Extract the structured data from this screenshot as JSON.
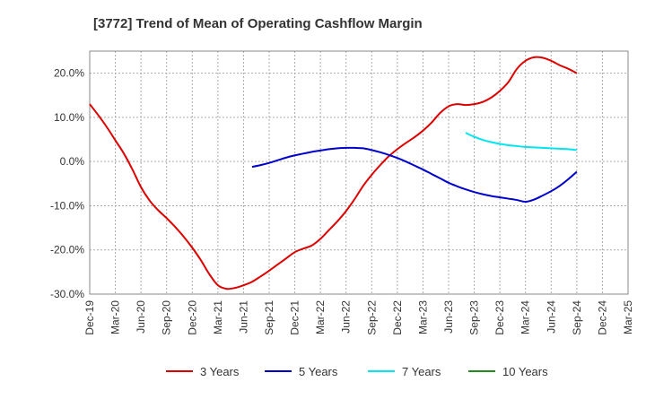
{
  "chart_data": {
    "type": "line",
    "title": "[3772]  Trend of Mean of Operating Cashflow Margin",
    "xlabel": "",
    "ylabel": "",
    "ylim": [
      -30,
      25
    ],
    "y_ticks": [
      20,
      10,
      0,
      -10,
      -20,
      -30
    ],
    "y_tick_labels": [
      "20.0%",
      "10.0%",
      "0.0%",
      "-10.0%",
      "-20.0%",
      "-30.0%"
    ],
    "x_tick_labels": [
      "Dec-19",
      "Mar-20",
      "Jun-20",
      "Sep-20",
      "Dec-20",
      "Mar-21",
      "Jun-21",
      "Sep-21",
      "Dec-21",
      "Mar-22",
      "Jun-22",
      "Sep-22",
      "Dec-22",
      "Mar-23",
      "Jun-23",
      "Sep-23",
      "Dec-23",
      "Mar-24",
      "Jun-24",
      "Sep-24",
      "Dec-24",
      "Mar-25"
    ],
    "grid": true,
    "legend_position": "bottom",
    "series": [
      {
        "name": "3 Years",
        "color": "#dd0000",
        "values": [
          [
            "Dec-19",
            13.0
          ],
          [
            "Jan-20",
            10.5
          ],
          [
            "Feb-20",
            7.8
          ],
          [
            "Mar-20",
            4.8
          ],
          [
            "Apr-20",
            1.8
          ],
          [
            "May-20",
            -1.8
          ],
          [
            "Jun-20",
            -5.8
          ],
          [
            "Jul-20",
            -8.8
          ],
          [
            "Aug-20",
            -11.0
          ],
          [
            "Sep-20",
            -12.8
          ],
          [
            "Oct-20",
            -14.8
          ],
          [
            "Nov-20",
            -17.0
          ],
          [
            "Dec-20",
            -19.5
          ],
          [
            "Jan-21",
            -22.3
          ],
          [
            "Feb-21",
            -25.5
          ],
          [
            "Mar-21",
            -28.0
          ],
          [
            "Apr-21",
            -28.8
          ],
          [
            "May-21",
            -28.6
          ],
          [
            "Jun-21",
            -28.0
          ],
          [
            "Jul-21",
            -27.2
          ],
          [
            "Aug-21",
            -26.0
          ],
          [
            "Sep-21",
            -24.7
          ],
          [
            "Oct-21",
            -23.3
          ],
          [
            "Nov-21",
            -21.9
          ],
          [
            "Dec-21",
            -20.5
          ],
          [
            "Jan-22",
            -19.7
          ],
          [
            "Feb-22",
            -19.0
          ],
          [
            "Mar-22",
            -17.5
          ],
          [
            "Apr-22",
            -15.5
          ],
          [
            "May-22",
            -13.5
          ],
          [
            "Jun-22",
            -11.2
          ],
          [
            "Jul-22",
            -8.5
          ],
          [
            "Aug-22",
            -5.5
          ],
          [
            "Sep-22",
            -3.0
          ],
          [
            "Oct-22",
            -0.8
          ],
          [
            "Nov-22",
            1.2
          ],
          [
            "Dec-22",
            2.8
          ],
          [
            "Jan-23",
            4.2
          ],
          [
            "Feb-23",
            5.5
          ],
          [
            "Mar-23",
            7.0
          ],
          [
            "Apr-23",
            8.8
          ],
          [
            "May-23",
            11.0
          ],
          [
            "Jun-23",
            12.5
          ],
          [
            "Jul-23",
            13.0
          ],
          [
            "Aug-23",
            12.8
          ],
          [
            "Sep-23",
            13.0
          ],
          [
            "Oct-23",
            13.5
          ],
          [
            "Nov-23",
            14.5
          ],
          [
            "Dec-23",
            16.0
          ],
          [
            "Jan-24",
            18.0
          ],
          [
            "Feb-24",
            21.0
          ],
          [
            "Mar-24",
            22.8
          ],
          [
            "Apr-24",
            23.6
          ],
          [
            "May-24",
            23.5
          ],
          [
            "Jun-24",
            22.8
          ],
          [
            "Jul-24",
            21.8
          ],
          [
            "Aug-24",
            21.0
          ],
          [
            "Sep-24",
            20.0
          ]
        ]
      },
      {
        "name": "5 Years",
        "color": "#0000cc",
        "values": [
          [
            "Jul-21",
            -1.2
          ],
          [
            "Aug-21",
            -0.8
          ],
          [
            "Sep-21",
            -0.3
          ],
          [
            "Oct-21",
            0.3
          ],
          [
            "Nov-21",
            0.9
          ],
          [
            "Dec-21",
            1.4
          ],
          [
            "Jan-22",
            1.8
          ],
          [
            "Feb-22",
            2.2
          ],
          [
            "Mar-22",
            2.5
          ],
          [
            "Apr-22",
            2.8
          ],
          [
            "May-22",
            3.0
          ],
          [
            "Jun-22",
            3.1
          ],
          [
            "Jul-22",
            3.1
          ],
          [
            "Aug-22",
            3.0
          ],
          [
            "Sep-22",
            2.6
          ],
          [
            "Oct-22",
            2.1
          ],
          [
            "Nov-22",
            1.5
          ],
          [
            "Dec-22",
            0.8
          ],
          [
            "Jan-23",
            0.0
          ],
          [
            "Feb-23",
            -0.9
          ],
          [
            "Mar-23",
            -1.8
          ],
          [
            "Apr-23",
            -2.8
          ],
          [
            "May-23",
            -3.8
          ],
          [
            "Jun-23",
            -4.8
          ],
          [
            "Jul-23",
            -5.6
          ],
          [
            "Aug-23",
            -6.3
          ],
          [
            "Sep-23",
            -6.9
          ],
          [
            "Oct-23",
            -7.4
          ],
          [
            "Nov-23",
            -7.8
          ],
          [
            "Dec-23",
            -8.1
          ],
          [
            "Jan-24",
            -8.4
          ],
          [
            "Feb-24",
            -8.7
          ],
          [
            "Mar-24",
            -9.1
          ],
          [
            "Apr-24",
            -8.6
          ],
          [
            "May-24",
            -7.7
          ],
          [
            "Jun-24",
            -6.7
          ],
          [
            "Jul-24",
            -5.5
          ],
          [
            "Aug-24",
            -4.0
          ],
          [
            "Sep-24",
            -2.3
          ]
        ]
      },
      {
        "name": "7 Years",
        "color": "#00e5ee",
        "values": [
          [
            "Aug-23",
            6.5
          ],
          [
            "Sep-23",
            5.6
          ],
          [
            "Oct-23",
            4.9
          ],
          [
            "Nov-23",
            4.4
          ],
          [
            "Dec-23",
            4.0
          ],
          [
            "Jan-24",
            3.7
          ],
          [
            "Feb-24",
            3.5
          ],
          [
            "Mar-24",
            3.3
          ],
          [
            "Apr-24",
            3.2
          ],
          [
            "May-24",
            3.1
          ],
          [
            "Jun-24",
            3.0
          ],
          [
            "Jul-24",
            2.9
          ],
          [
            "Aug-24",
            2.8
          ],
          [
            "Sep-24",
            2.6
          ]
        ]
      },
      {
        "name": "10 Years",
        "color": "#228b22",
        "values": []
      }
    ]
  }
}
